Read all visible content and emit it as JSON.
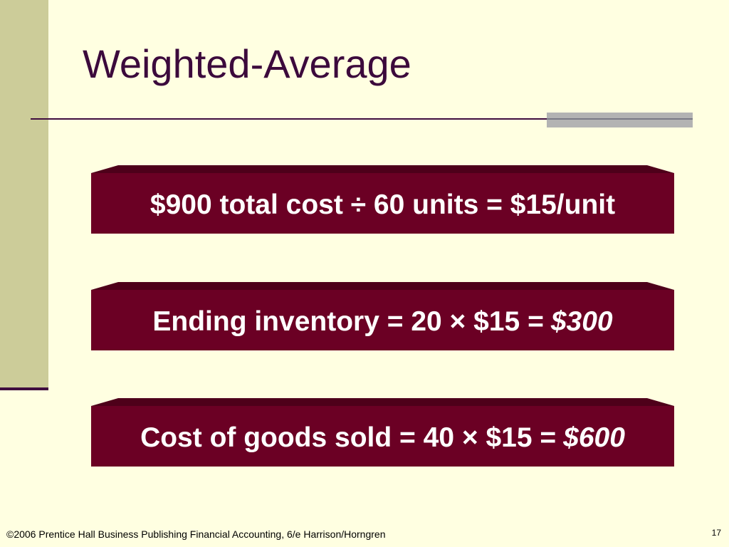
{
  "slide": {
    "title": "Weighted-Average",
    "panels": [
      {
        "text": "$900 total cost ÷ 60 units = $15/unit",
        "emphasis": ""
      },
      {
        "text": "Ending inventory = 20 × $15 =",
        "emphasis": "$300"
      },
      {
        "text": "Cost of goods sold = 40 × $15 =",
        "emphasis": "$600"
      }
    ]
  },
  "footer": {
    "copyright": "©2006 Prentice Hall Business Publishing Financial Accounting, 6/e Harrison/Horngren",
    "page_number": "17"
  },
  "colors": {
    "background": "#FFFFE1",
    "sidebar": "#CCCC99",
    "title_text": "#3C0A3C",
    "panel_fill": "#6B0024",
    "panel_bevel": "#4E001A",
    "panel_text": "#FFFFFF"
  }
}
